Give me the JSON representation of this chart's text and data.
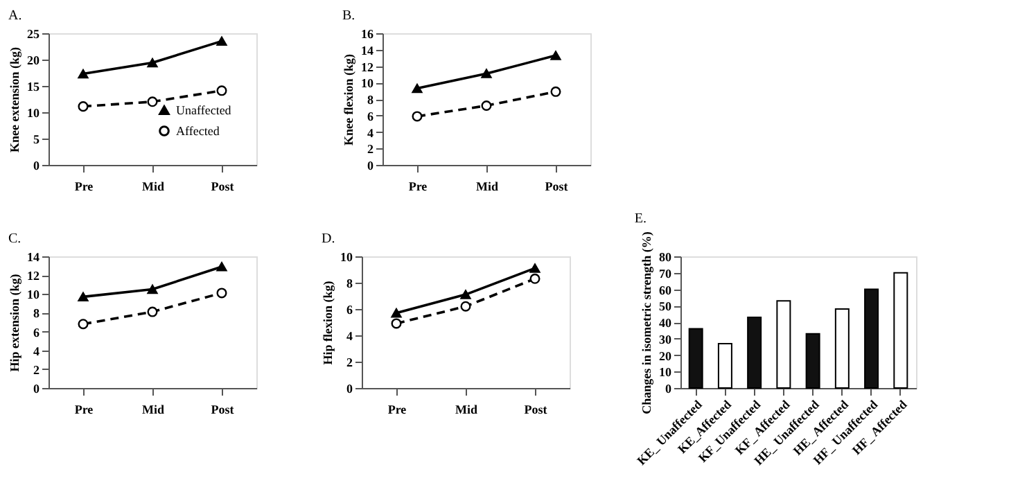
{
  "chart_data": [
    {
      "type": "line",
      "title": "A.",
      "ylabel": "Knee extension (kg)",
      "categories": [
        "Pre",
        "Mid",
        "Post"
      ],
      "ylim": [
        0,
        25
      ],
      "yticks": [
        0,
        5,
        10,
        15,
        20,
        25
      ],
      "grid": false,
      "legend": "bottom right",
      "series": [
        {
          "name": "Unaffected",
          "color": "#000000",
          "values": [
            17.3,
            19.4,
            23.5
          ],
          "marker": "triangle",
          "line_style": "solid"
        },
        {
          "name": "Affected",
          "color": "#000000",
          "values": [
            11.1,
            12.0,
            14.1
          ],
          "marker": "circle",
          "line_style": "dashed"
        }
      ]
    },
    {
      "type": "line",
      "title": "B.",
      "ylabel": "Knee flexion (kg)",
      "categories": [
        "Pre",
        "Mid",
        "Post"
      ],
      "ylim": [
        0,
        16
      ],
      "yticks": [
        0,
        2,
        4,
        6,
        8,
        10,
        12,
        14,
        16
      ],
      "grid": false,
      "legend": false,
      "series": [
        {
          "color": "#000000",
          "values": [
            9.3,
            11.1,
            13.3
          ],
          "marker": "triangle",
          "line_style": "solid"
        },
        {
          "color": "#000000",
          "values": [
            5.9,
            7.2,
            8.9
          ],
          "marker": "circle",
          "line_style": "dashed"
        }
      ]
    },
    {
      "type": "line",
      "title": "C.",
      "ylabel": "Hip extension (kg)",
      "categories": [
        "Pre",
        "Mid",
        "Post"
      ],
      "ylim": [
        0,
        14
      ],
      "yticks": [
        0,
        2,
        4,
        6,
        8,
        10,
        12,
        14
      ],
      "grid": false,
      "legend": false,
      "series": [
        {
          "color": "#000000",
          "values": [
            9.7,
            10.5,
            12.9
          ],
          "marker": "triangle",
          "line_style": "solid"
        },
        {
          "color": "#000000",
          "values": [
            6.8,
            8.1,
            10.1
          ],
          "marker": "circle",
          "line_style": "dashed"
        }
      ]
    },
    {
      "type": "line",
      "title": "D.",
      "ylabel": "Hip flexion (kg)",
      "categories": [
        "Pre",
        "Mid",
        "Post"
      ],
      "ylim": [
        0,
        10
      ],
      "yticks": [
        0,
        2,
        4,
        6,
        8,
        10
      ],
      "grid": false,
      "legend": false,
      "series": [
        {
          "color": "#000000",
          "values": [
            5.7,
            7.1,
            9.1
          ],
          "marker": "triangle",
          "line_style": "solid"
        },
        {
          "color": "#000000",
          "values": [
            4.9,
            6.2,
            8.3
          ],
          "marker": "circle",
          "line_style": "dashed"
        }
      ]
    },
    {
      "type": "bar",
      "title": "E.",
      "ylabel": "Changes in isometric strength (%)",
      "categories": [
        "KE_ Unaffected",
        "KE_Affected",
        "KF_Unaffected",
        "KF_ Affected",
        "HE_ Unaffected",
        "HE_ Affected",
        "HF_ Unaffected",
        "HF_ Affected"
      ],
      "values": [
        36,
        27,
        43,
        53,
        33,
        48,
        60,
        70
      ],
      "colors": [
        "#111111",
        "#ffffff",
        "#111111",
        "#ffffff",
        "#111111",
        "#ffffff",
        "#111111",
        "#ffffff"
      ],
      "ylim": [
        0,
        80
      ],
      "yticks": [
        0,
        10,
        20,
        30,
        40,
        50,
        60,
        70,
        80
      ],
      "grid": false
    }
  ]
}
